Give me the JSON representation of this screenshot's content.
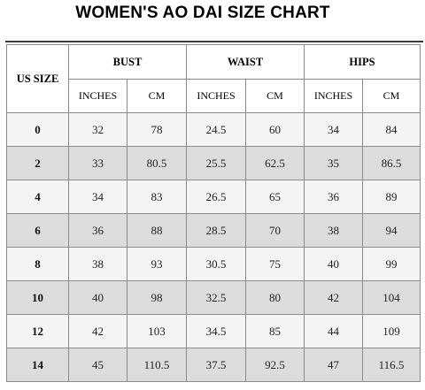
{
  "title": "WOMEN'S AO DAI SIZE CHART",
  "headers": {
    "size": "US SIZE",
    "bust": "BUST",
    "waist": "WAIST",
    "hips": "HIPS",
    "inches": "INCHES",
    "cm": "CM"
  },
  "rows": [
    {
      "size": "0",
      "bust_in": "32",
      "bust_cm": "78",
      "waist_in": "24.5",
      "waist_cm": "60",
      "hips_in": "34",
      "hips_cm": "84"
    },
    {
      "size": "2",
      "bust_in": "33",
      "bust_cm": "80.5",
      "waist_in": "25.5",
      "waist_cm": "62.5",
      "hips_in": "35",
      "hips_cm": "86.5"
    },
    {
      "size": "4",
      "bust_in": "34",
      "bust_cm": "83",
      "waist_in": "26.5",
      "waist_cm": "65",
      "hips_in": "36",
      "hips_cm": "89"
    },
    {
      "size": "6",
      "bust_in": "36",
      "bust_cm": "88",
      "waist_in": "28.5",
      "waist_cm": "70",
      "hips_in": "38",
      "hips_cm": "94"
    },
    {
      "size": "8",
      "bust_in": "38",
      "bust_cm": "93",
      "waist_in": "30.5",
      "waist_cm": "75",
      "hips_in": "40",
      "hips_cm": "99"
    },
    {
      "size": "10",
      "bust_in": "40",
      "bust_cm": "98",
      "waist_in": "32.5",
      "waist_cm": "80",
      "hips_in": "42",
      "hips_cm": "104"
    },
    {
      "size": "12",
      "bust_in": "42",
      "bust_cm": "103",
      "waist_in": "34.5",
      "waist_cm": "85",
      "hips_in": "44",
      "hips_cm": "109"
    },
    {
      "size": "14",
      "bust_in": "45",
      "bust_cm": "110.5",
      "waist_in": "37.5",
      "waist_cm": "92.5",
      "hips_in": "47",
      "hips_cm": "116.5"
    }
  ]
}
